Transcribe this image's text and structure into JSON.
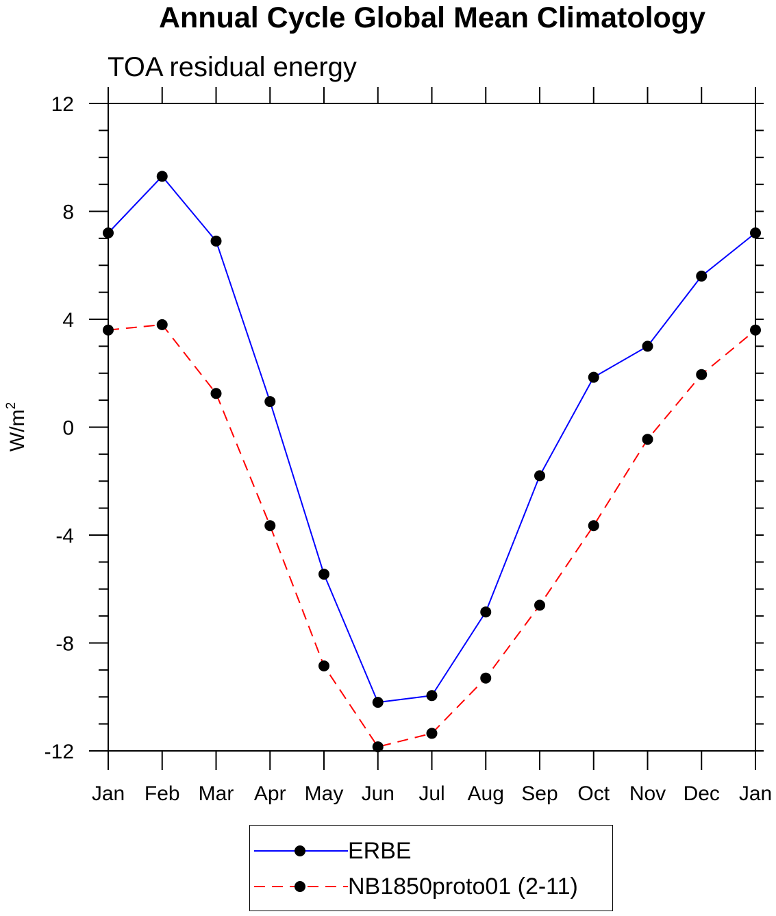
{
  "chart_data": {
    "type": "line",
    "title": "Annual Cycle Global Mean Climatology",
    "subtitle": "TOA residual energy",
    "ylabel": "W/m",
    "ylabel_superscript": "2",
    "ylim": [
      -12,
      12
    ],
    "yticks": [
      -12,
      -8,
      -4,
      0,
      4,
      8,
      12
    ],
    "ytick_labels": [
      "-12",
      "-8",
      "-4",
      "0",
      "4",
      "8",
      "12"
    ],
    "categories": [
      "Jan",
      "Feb",
      "Mar",
      "Apr",
      "May",
      "Jun",
      "Jul",
      "Aug",
      "Sep",
      "Oct",
      "Nov",
      "Dec",
      "Jan"
    ],
    "legend_position": "bottom-center",
    "grid": false,
    "series": [
      {
        "name": "ERBE",
        "color": "#0000ff",
        "dash": "solid",
        "marker": "filled-circle",
        "values": [
          7.2,
          9.3,
          6.9,
          0.95,
          -5.45,
          -10.2,
          -9.95,
          -6.85,
          -1.8,
          1.85,
          3.0,
          5.6,
          7.2
        ]
      },
      {
        "name": "NB1850proto01 (2-11)",
        "color": "#ff0000",
        "dash": "dashed",
        "marker": "filled-circle",
        "values": [
          3.6,
          3.8,
          1.25,
          -3.65,
          -8.85,
          -11.85,
          -11.35,
          -9.3,
          -6.6,
          -3.65,
          -0.45,
          1.95,
          3.6
        ]
      }
    ]
  }
}
